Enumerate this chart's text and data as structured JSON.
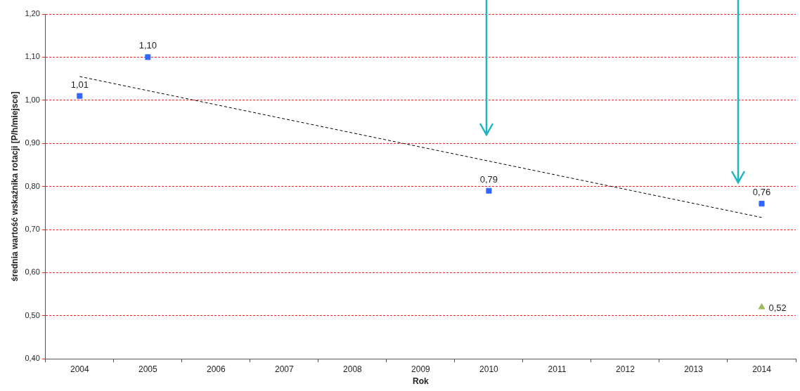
{
  "chart_data": {
    "type": "scatter",
    "xlabel": "Rok",
    "ylabel": "średnia wartość wskaźnika rotacji [P/h/miejsce]",
    "categories": [
      "2004",
      "2005",
      "2006",
      "2007",
      "2008",
      "2009",
      "2010",
      "2011",
      "2012",
      "2013",
      "2014"
    ],
    "ylim": [
      0.4,
      1.2
    ],
    "yticks": [
      {
        "value": 0.4,
        "label": "0,40"
      },
      {
        "value": 0.5,
        "label": "0,50"
      },
      {
        "value": 0.6,
        "label": "0,60"
      },
      {
        "value": 0.7,
        "label": "0,70"
      },
      {
        "value": 0.8,
        "label": "0,80"
      },
      {
        "value": 0.9,
        "label": "0,90"
      },
      {
        "value": 1.0,
        "label": "1,00"
      },
      {
        "value": 1.1,
        "label": "1,10"
      },
      {
        "value": 1.2,
        "label": "1,20"
      }
    ],
    "grid": "y",
    "series": [
      {
        "type": "scatter",
        "marker": "square",
        "color": "#3366ff",
        "values": [
          1.01,
          1.1,
          null,
          null,
          null,
          null,
          0.79,
          null,
          null,
          null,
          0.76
        ],
        "value_labels": [
          "1,01",
          "1,10",
          null,
          null,
          null,
          null,
          "0,79",
          null,
          null,
          null,
          "0,76"
        ]
      },
      {
        "type": "scatter",
        "marker": "triangle",
        "color": "#9bbb59",
        "values": [
          null,
          null,
          null,
          null,
          null,
          null,
          null,
          null,
          null,
          null,
          0.52
        ],
        "value_labels": [
          null,
          null,
          null,
          null,
          null,
          null,
          null,
          null,
          null,
          null,
          "0,52"
        ]
      },
      {
        "type": "line",
        "marker": "none",
        "line_style": "dashed",
        "color": "#000000",
        "values": [
          1.055,
          null,
          null,
          null,
          null,
          null,
          null,
          null,
          null,
          null,
          0.728
        ]
      }
    ]
  }
}
